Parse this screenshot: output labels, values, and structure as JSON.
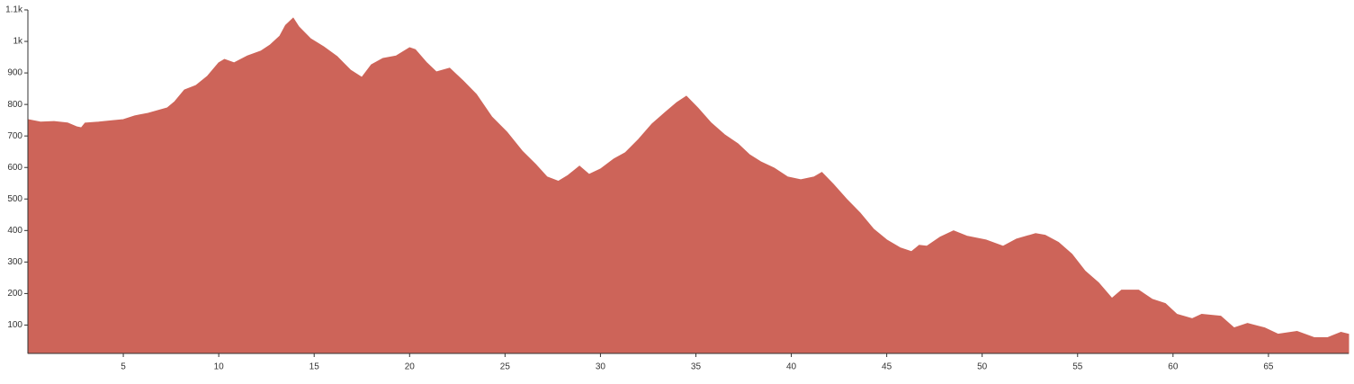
{
  "chart_data": {
    "type": "area",
    "color": "#cd6459",
    "x": [
      0,
      0.66,
      1.37,
      2.08,
      2.55,
      2.8,
      3.0,
      3.7,
      5,
      5.6,
      6.3,
      7.3,
      7.7,
      8.2,
      8.8,
      9.4,
      10,
      10.3,
      10.8,
      11.5,
      12.2,
      12.7,
      13.2,
      13.5,
      13.9,
      14.2,
      14.8,
      15.5,
      16.2,
      16.9,
      17.5,
      18.0,
      18.6,
      19.3,
      20,
      20.3,
      20.9,
      21.4,
      22.1,
      22.8,
      23.5,
      24.3,
      25.1,
      25.9,
      26.6,
      27.2,
      27.8,
      28.3,
      28.9,
      29.4,
      30.0,
      30.7,
      31.3,
      32.0,
      32.7,
      33.4,
      34.0,
      34.5,
      35.1,
      35.8,
      36.5,
      37.2,
      37.8,
      38.4,
      39.1,
      39.8,
      40.5,
      41.2,
      41.6,
      42.2,
      42.9,
      43.6,
      44.3,
      45.0,
      45.7,
      46.3,
      46.7,
      47.1,
      47.8,
      48.5,
      49.2,
      50.2,
      51.1,
      51.8,
      52.8,
      53.3,
      54.0,
      54.7,
      55.4,
      56.1,
      56.8,
      57.3,
      58.2,
      58.9,
      59.6,
      60.2,
      61.0,
      61.5,
      62.5,
      63.2,
      63.9,
      64.8,
      65.5,
      66.5,
      67.4,
      68.1,
      68.8,
      69.2
    ],
    "values": [
      752,
      744,
      746,
      741,
      729,
      726,
      741,
      744,
      752,
      764,
      772,
      789,
      809,
      846,
      860,
      889,
      932,
      943,
      932,
      954,
      969,
      989,
      1017,
      1051,
      1074,
      1046,
      1009,
      983,
      952,
      909,
      886,
      926,
      946,
      954,
      980,
      974,
      932,
      903,
      915,
      875,
      832,
      761,
      712,
      652,
      610,
      570,
      556,
      575,
      604,
      578,
      595,
      627,
      647,
      689,
      738,
      775,
      806,
      826,
      789,
      741,
      704,
      675,
      641,
      618,
      598,
      570,
      561,
      570,
      584,
      547,
      499,
      456,
      405,
      370,
      345,
      333,
      353,
      350,
      379,
      399,
      382,
      370,
      350,
      373,
      390,
      385,
      362,
      325,
      271,
      234,
      185,
      211,
      211,
      182,
      168,
      134,
      120,
      134,
      128,
      91,
      105,
      91,
      71,
      80,
      60,
      60,
      77,
      71
    ],
    "xlim": [
      0,
      69.2
    ],
    "ylim": [
      10,
      1100
    ],
    "xticks": [
      5,
      10,
      15,
      20,
      25,
      30,
      35,
      40,
      45,
      50,
      55,
      60,
      65
    ],
    "yticks": [
      100,
      200,
      300,
      400,
      500,
      600,
      700,
      800,
      900,
      {
        "value": 1000,
        "label": "1k"
      },
      {
        "value": 1100,
        "label": "1.1k"
      }
    ]
  }
}
